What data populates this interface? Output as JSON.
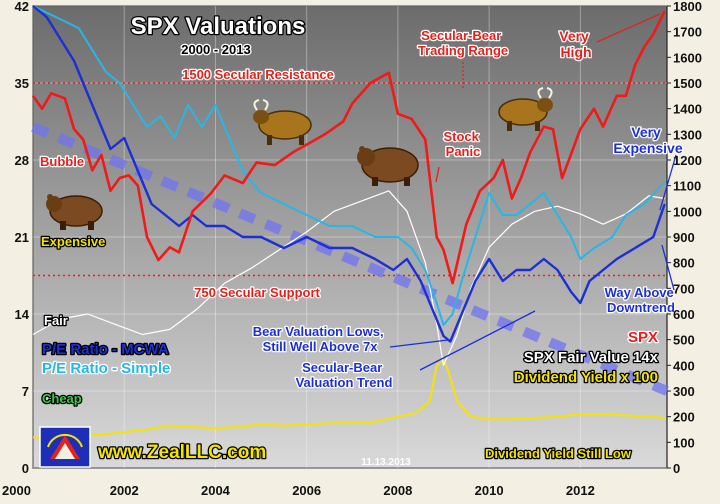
{
  "chart_data": {
    "type": "line",
    "title": "SPX Valuations",
    "subtitle": "2000 - 2013",
    "x_ticks": [
      "2000",
      "2002",
      "2004",
      "2006",
      "2008",
      "2010",
      "2012"
    ],
    "x_range": [
      2000,
      2013.9
    ],
    "y_left_ticks": [
      "0",
      "7",
      "14",
      "21",
      "28",
      "35",
      "42"
    ],
    "y_left_range": [
      0,
      42
    ],
    "y_right_ticks": [
      "0",
      "100",
      "200",
      "300",
      "400",
      "500",
      "600",
      "700",
      "800",
      "900",
      "1000",
      "1100",
      "1200",
      "1300",
      "1400",
      "1500",
      "1600",
      "1700",
      "1800"
    ],
    "y_right_range": [
      0,
      1800
    ],
    "horizontal_lines": [
      {
        "label": "1500 Secular Resistance",
        "value": 1500,
        "axis": "right",
        "color": "#e0231f"
      },
      {
        "label": "750 Secular Support",
        "value": 750,
        "axis": "right",
        "color": "#e0231f"
      }
    ],
    "series": [
      {
        "name": "SPX",
        "axis": "right",
        "color": "#f01a1a",
        "x": [
          2000.0,
          2000.2,
          2000.4,
          2000.7,
          2000.9,
          2001.1,
          2001.3,
          2001.5,
          2001.7,
          2001.9,
          2002.1,
          2002.3,
          2002.5,
          2002.75,
          2003.0,
          2003.2,
          2003.5,
          2003.9,
          2004.2,
          2004.6,
          2004.9,
          2005.3,
          2005.7,
          2006.0,
          2006.4,
          2006.8,
          2007.0,
          2007.4,
          2007.8,
          2008.0,
          2008.3,
          2008.6,
          2008.85,
          2009.0,
          2009.2,
          2009.5,
          2009.8,
          2010.1,
          2010.3,
          2010.5,
          2010.7,
          2010.9,
          2011.2,
          2011.4,
          2011.6,
          2011.75,
          2012.0,
          2012.3,
          2012.5,
          2012.8,
          2013.0,
          2013.2,
          2013.4,
          2013.6,
          2013.85
        ],
        "y": [
          1450,
          1400,
          1460,
          1440,
          1320,
          1280,
          1160,
          1220,
          1080,
          1130,
          1140,
          1100,
          900,
          810,
          860,
          840,
          1000,
          1070,
          1140,
          1110,
          1190,
          1180,
          1230,
          1260,
          1300,
          1350,
          1420,
          1500,
          1540,
          1380,
          1360,
          1280,
          900,
          850,
          720,
          950,
          1080,
          1130,
          1200,
          1050,
          1130,
          1230,
          1330,
          1320,
          1130,
          1200,
          1320,
          1400,
          1330,
          1450,
          1450,
          1570,
          1640,
          1690,
          1780
        ]
      },
      {
        "name": "P/E Ratio - MCWA",
        "axis": "left",
        "color": "#1c2fd6",
        "x": [
          2000.0,
          2000.3,
          2000.6,
          2000.9,
          2001.2,
          2001.5,
          2001.7,
          2002.0,
          2002.3,
          2002.6,
          2002.9,
          2003.2,
          2003.5,
          2003.8,
          2004.2,
          2004.6,
          2005.0,
          2005.5,
          2006.0,
          2006.5,
          2007.0,
          2007.5,
          2007.9,
          2008.2,
          2008.5,
          2008.8,
          2009.0,
          2009.15,
          2009.4,
          2009.7,
          2010.0,
          2010.3,
          2010.6,
          2010.9,
          2011.2,
          2011.5,
          2011.8,
          2012.0,
          2012.2,
          2012.5,
          2012.8,
          2013.2,
          2013.6,
          2013.85
        ],
        "y": [
          42,
          41,
          39,
          37,
          34,
          31,
          29,
          30,
          27,
          24,
          23,
          22,
          23,
          22,
          22,
          21,
          21,
          20,
          21,
          20,
          20,
          19,
          18,
          19,
          17,
          14,
          12,
          11.5,
          14,
          17,
          19,
          17,
          18,
          18,
          19,
          18,
          16,
          15,
          17,
          18,
          19,
          20,
          21,
          24
        ]
      },
      {
        "name": "P/E Ratio - Simple",
        "axis": "left",
        "color": "#27b7e6",
        "x": [
          2000.0,
          2000.5,
          2001.0,
          2001.3,
          2001.6,
          2001.9,
          2002.2,
          2002.5,
          2002.8,
          2003.1,
          2003.4,
          2003.7,
          2004.0,
          2004.3,
          2004.6,
          2005.0,
          2005.5,
          2006.0,
          2006.5,
          2007.0,
          2007.5,
          2008.0,
          2008.3,
          2008.6,
          2008.85,
          2009.0,
          2009.2,
          2009.4,
          2009.7,
          2010.0,
          2010.3,
          2010.6,
          2010.9,
          2011.2,
          2011.5,
          2011.8,
          2012.0,
          2012.3,
          2012.7,
          2013.0,
          2013.4,
          2013.85
        ],
        "y": [
          42,
          41,
          40,
          38,
          36,
          35,
          33,
          31,
          32,
          30,
          33,
          31,
          33,
          30,
          27,
          25,
          24,
          23,
          22,
          22,
          21,
          21,
          20,
          18,
          15,
          13,
          14,
          17,
          21,
          25,
          23,
          23,
          24,
          25,
          23,
          21,
          19,
          20,
          21,
          23,
          24,
          26
        ]
      },
      {
        "name": "Dividend Yield x 100",
        "axis": "right",
        "color": "#f5e400",
        "x": [
          2000.0,
          2000.5,
          2001.0,
          2001.5,
          2002.0,
          2002.5,
          2003.0,
          2003.5,
          2004.0,
          2004.5,
          2005.0,
          2005.5,
          2006.0,
          2006.5,
          2007.0,
          2007.5,
          2008.0,
          2008.4,
          2008.7,
          2008.85,
          2009.0,
          2009.1,
          2009.3,
          2009.6,
          2010.0,
          2010.5,
          2011.0,
          2011.5,
          2012.0,
          2012.5,
          2013.0,
          2013.5,
          2013.85
        ],
        "y": [
          120,
          115,
          125,
          130,
          140,
          150,
          165,
          160,
          155,
          160,
          170,
          165,
          170,
          175,
          175,
          180,
          200,
          215,
          260,
          400,
          420,
          380,
          260,
          200,
          190,
          190,
          195,
          200,
          210,
          210,
          205,
          200,
          195
        ]
      },
      {
        "name": "SPX Fair Value 14x",
        "axis": "right",
        "color": "#ffffff",
        "x": [
          2000.0,
          2000.6,
          2001.2,
          2001.8,
          2002.4,
          2003.0,
          2003.6,
          2004.2,
          2004.8,
          2005.4,
          2006.0,
          2006.6,
          2007.2,
          2007.8,
          2008.2,
          2008.6,
          2008.85,
          2009.0,
          2009.3,
          2009.6,
          2010.0,
          2010.5,
          2011.0,
          2011.5,
          2012.0,
          2012.5,
          2013.0,
          2013.5,
          2013.85
        ],
        "y": [
          520,
          580,
          600,
          560,
          520,
          540,
          620,
          720,
          780,
          850,
          920,
          1000,
          1040,
          1080,
          1000,
          800,
          560,
          400,
          520,
          700,
          860,
          950,
          1000,
          1020,
          990,
          950,
          990,
          1060,
          1050
        ]
      }
    ],
    "trend_line": {
      "label": "Secular-Bear Valuation Trend",
      "x": [
        2000.0,
        2013.9
      ],
      "y_axis": "left",
      "y": [
        31,
        7
      ]
    },
    "annotations": [
      "Secular-Bear Trading Range",
      "Very High",
      "Stock Panic",
      "Very Expensive",
      "Bubble",
      "Expensive",
      "Fair",
      "Cheap",
      "Bear Valuation Lows, Still Well Above 7x",
      "Way Above Downtrend",
      "Dividend Yield Still Low"
    ],
    "legend": [
      "P/E Ratio - MCWA",
      "P/E Ratio - Simple",
      "SPX",
      "SPX Fair Value 14x",
      "Dividend Yield x 100"
    ],
    "footer": {
      "site": "www.ZealLLC.com",
      "date": "11.13.2013"
    }
  }
}
